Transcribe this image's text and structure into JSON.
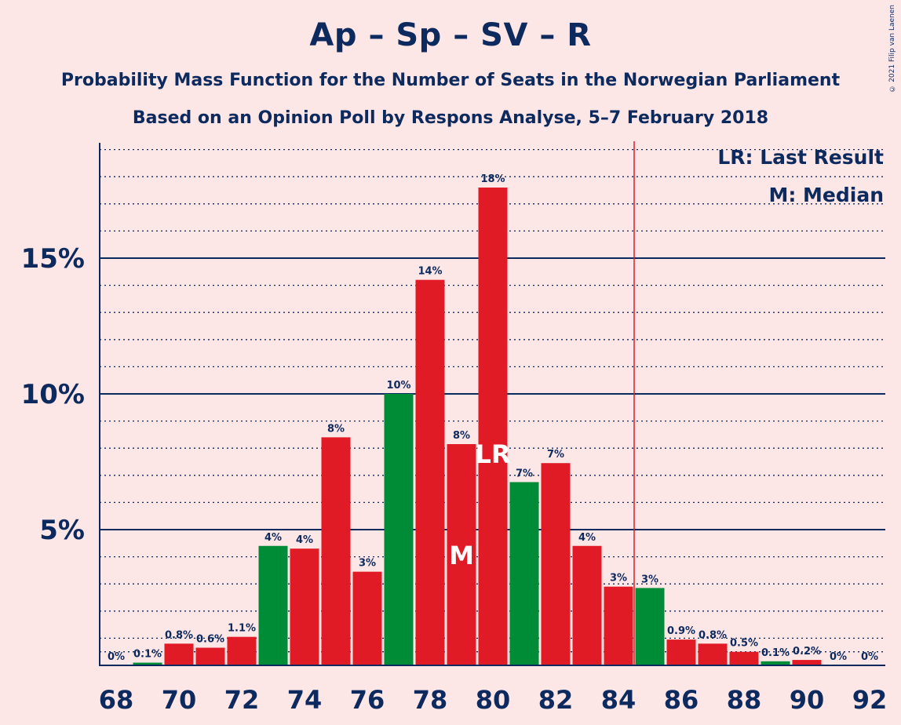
{
  "title": "Ap – Sp – SV – R",
  "subtitle1": "Probability Mass Function for the Number of Seats in the Norwegian Parliament",
  "subtitle2": "Based on an Opinion Poll by Respons Analyse, 5–7 February 2018",
  "copyright": "© 2021 Filip van Laenen",
  "legend": {
    "last_result": "LR: Last Result",
    "median": "M: Median"
  },
  "colors": {
    "background": "#fde6e6",
    "text": "#0d2a5e",
    "red": "#e11b26",
    "green": "#008c36",
    "last_result_line": "#e11b26"
  },
  "chart_data": {
    "type": "bar",
    "xlabel": "",
    "ylabel": "",
    "x": [
      68,
      69,
      70,
      71,
      72,
      73,
      74,
      75,
      76,
      77,
      78,
      79,
      80,
      81,
      82,
      83,
      84,
      85,
      86,
      87,
      88,
      89,
      90,
      91,
      92
    ],
    "values": [
      0,
      0.1,
      0.8,
      0.65,
      1.05,
      4.4,
      4.3,
      8.4,
      3.45,
      10.0,
      14.2,
      8.15,
      17.6,
      6.75,
      7.45,
      4.4,
      2.9,
      2.85,
      0.95,
      0.8,
      0.5,
      0.15,
      0.2,
      0,
      0
    ],
    "labels": [
      "0%",
      "0.1%",
      "0.8%",
      "0.6%",
      "1.1%",
      "4%",
      "4%",
      "8%",
      "3%",
      "10%",
      "14%",
      "8%",
      "18%",
      "7%",
      "7%",
      "4%",
      "3%",
      "3%",
      "0.9%",
      "0.8%",
      "0.5%",
      "0.1%",
      "0.2%",
      "0%",
      "0%"
    ],
    "bar_colors": [
      "red",
      "green",
      "red",
      "red",
      "red",
      "green",
      "red",
      "red",
      "red",
      "green",
      "red",
      "red",
      "red",
      "green",
      "red",
      "red",
      "red",
      "green",
      "red",
      "red",
      "red",
      "green",
      "red",
      "red",
      "red"
    ],
    "x_tick_labels": [
      "68",
      "70",
      "72",
      "74",
      "76",
      "78",
      "80",
      "82",
      "84",
      "86",
      "88",
      "90",
      "92"
    ],
    "y_tick_labels": [
      "5%",
      "10%",
      "15%"
    ],
    "y_ticks": [
      5,
      10,
      15
    ],
    "ylim": [
      0,
      19
    ],
    "minor_grid_step": 1,
    "median_seat": 79,
    "median_label": "M",
    "last_result_seat": 80,
    "last_result_label": "LR",
    "majority_line_x": 84.5,
    "grid": true,
    "legend_position": "top-right"
  }
}
